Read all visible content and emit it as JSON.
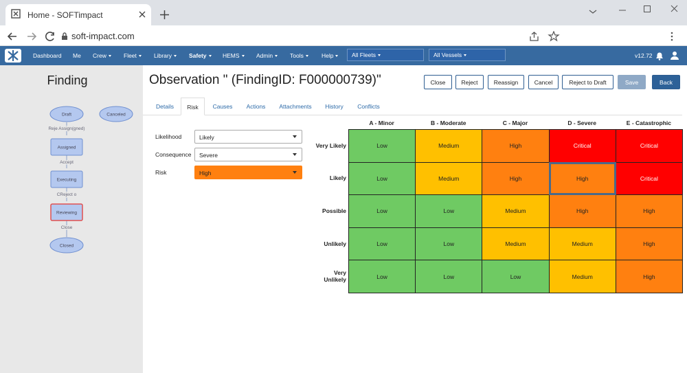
{
  "browser": {
    "tab_title": "Home - SOFTimpact",
    "url": "soft-impact.com"
  },
  "nav": {
    "items": [
      "Dashboard",
      "Me",
      "Crew",
      "Fleet",
      "Library",
      "Safety",
      "HEMS",
      "Admin",
      "Tools",
      "Help"
    ],
    "fleet_select": "All Fleets",
    "vessel_select": "All Vessels",
    "version": "v12.72"
  },
  "sidebar": {
    "title": "Finding",
    "nodes": [
      "Draft",
      "Canceled",
      "Assigned",
      "Executing",
      "Reviewing",
      "Closed"
    ],
    "edges": [
      "Reje Assign(gned)",
      "Accept",
      "CReject o",
      "Close"
    ]
  },
  "header": {
    "title": "Observation \" (FindingID: F000000739)\"",
    "buttons": [
      "Close",
      "Reject",
      "Reassign",
      "Cancel",
      "Reject to Draft",
      "Save",
      "Back"
    ]
  },
  "tabs": [
    "Details",
    "Risk",
    "Causes",
    "Actions",
    "Attachments",
    "History",
    "Conflicts"
  ],
  "form": {
    "fields": [
      {
        "label": "Likelihood",
        "value": "Likely"
      },
      {
        "label": "Consequence",
        "value": "Severe"
      },
      {
        "label": "Risk",
        "value": "High"
      }
    ]
  },
  "matrix": {
    "columns": [
      "A - Minor",
      "B - Moderate",
      "C - Major",
      "D - Severe",
      "E - Catastrophic"
    ],
    "rows": [
      {
        "label": "Very Likely",
        "cells": [
          "Low",
          "Medium",
          "High",
          "Critical",
          "Critical"
        ]
      },
      {
        "label": "Likely",
        "cells": [
          "Low",
          "Medium",
          "High",
          "High",
          "Critical"
        ]
      },
      {
        "label": "Possible",
        "cells": [
          "Low",
          "Low",
          "Medium",
          "High",
          "High"
        ]
      },
      {
        "label": "Unlikely",
        "cells": [
          "Low",
          "Low",
          "Medium",
          "Medium",
          "High"
        ]
      },
      {
        "label": "Very Unlikely",
        "cells": [
          "Low",
          "Low",
          "Low",
          "Medium",
          "High"
        ]
      }
    ],
    "colors": {
      "Low": "#6fca63",
      "Medium": "#ffc000",
      "High": "#ff8010",
      "Critical": "#ff0000"
    }
  }
}
